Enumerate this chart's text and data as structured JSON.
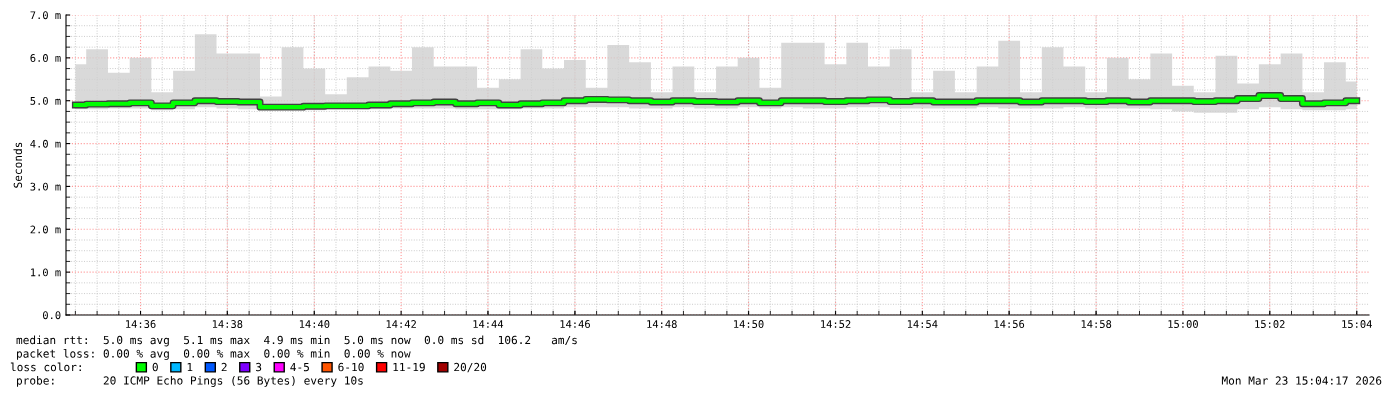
{
  "chart_data": {
    "type": "step",
    "ylabel": "Seconds",
    "x": [
      14.575,
      14.5833,
      14.5917,
      14.6,
      14.6083,
      14.6167,
      14.625,
      14.6333,
      14.6417,
      14.65,
      14.6583,
      14.6667,
      14.675,
      14.6833,
      14.6917,
      14.7,
      14.7083,
      14.7167,
      14.725,
      14.7333,
      14.7417,
      14.75,
      14.7583,
      14.7667,
      14.775,
      14.7833,
      14.7917,
      14.8,
      14.8083,
      14.8167,
      14.825,
      14.8333,
      14.8417,
      14.85,
      14.8583,
      14.8667,
      14.875,
      14.8833,
      14.8917,
      14.9,
      14.9083,
      14.9167,
      14.925,
      14.9333,
      14.9417,
      14.95,
      14.9583,
      14.9667,
      14.975,
      14.9833,
      14.9917,
      15.0,
      15.0083,
      15.0167,
      15.025,
      15.0333,
      15.0417,
      15.05,
      15.0583,
      15.0667
    ],
    "series": [
      {
        "name": "0",
        "color": "#00ff00",
        "values": [
          4.9,
          4.92,
          4.93,
          4.95,
          4.88,
          4.95,
          5.0,
          4.98,
          4.97,
          4.85,
          4.85,
          4.87,
          4.88,
          4.88,
          4.9,
          4.93,
          4.95,
          4.97,
          4.93,
          4.95,
          4.9,
          4.93,
          4.95,
          5.0,
          5.03,
          5.02,
          5.0,
          4.97,
          5.0,
          4.98,
          4.97,
          5.0,
          4.95,
          5.0,
          5.0,
          4.98,
          5.0,
          5.02,
          4.98,
          5.0,
          4.97,
          4.97,
          5.0,
          5.0,
          4.97,
          5.0,
          5.0,
          4.98,
          5.0,
          4.97,
          5.0,
          5.0,
          4.98,
          5.0,
          5.05,
          5.12,
          5.05,
          4.93,
          4.95,
          5.0
        ],
        "lower": [
          4.8,
          4.8,
          4.82,
          4.82,
          4.78,
          4.8,
          4.85,
          4.82,
          4.8,
          4.78,
          4.78,
          4.78,
          4.8,
          4.8,
          4.8,
          4.82,
          4.82,
          4.82,
          4.8,
          4.8,
          4.8,
          4.82,
          4.82,
          4.85,
          4.85,
          4.85,
          4.82,
          4.82,
          4.85,
          4.82,
          4.82,
          4.85,
          4.82,
          4.85,
          4.82,
          4.82,
          4.85,
          4.85,
          4.82,
          4.82,
          4.82,
          4.82,
          4.85,
          4.82,
          4.82,
          4.82,
          4.85,
          4.82,
          4.82,
          4.82,
          4.8,
          4.75,
          4.72,
          4.72,
          4.8,
          4.85,
          4.8,
          4.78,
          4.78,
          4.8
        ],
        "upper": [
          5.85,
          6.2,
          5.65,
          6.0,
          5.2,
          5.7,
          6.55,
          6.1,
          6.1,
          5.1,
          6.25,
          5.75,
          5.15,
          5.55,
          5.8,
          5.7,
          6.25,
          5.8,
          5.8,
          5.3,
          5.5,
          6.2,
          5.75,
          5.95,
          5.3,
          6.3,
          5.9,
          5.2,
          5.8,
          5.2,
          5.8,
          6.0,
          5.3,
          6.35,
          6.35,
          5.85,
          6.35,
          5.8,
          6.2,
          5.2,
          5.7,
          5.2,
          5.8,
          6.4,
          5.2,
          6.25,
          5.8,
          5.2,
          6.0,
          5.5,
          6.1,
          5.35,
          5.2,
          6.05,
          5.4,
          5.85,
          6.1,
          5.2,
          5.9,
          5.45
        ]
      },
      {
        "name": "1",
        "color": "#00b8ff",
        "values": [
          null,
          null,
          null,
          null,
          null,
          null,
          null,
          null,
          null,
          null,
          null,
          null,
          null,
          null,
          null,
          null,
          null,
          null,
          null,
          null,
          null,
          null,
          null,
          null,
          null,
          null,
          null,
          null,
          null,
          null,
          null,
          null,
          null,
          null,
          null,
          null,
          null,
          null,
          null,
          null,
          null,
          null,
          null,
          null,
          null,
          null,
          null,
          null,
          null,
          null,
          null,
          null,
          null,
          null,
          null,
          null,
          null,
          null,
          null,
          null
        ]
      },
      {
        "name": "2",
        "color": "#0059ff",
        "values": [
          null,
          null,
          null,
          null,
          null,
          null,
          null,
          null,
          null,
          null,
          null,
          null,
          null,
          null,
          null,
          null,
          null,
          null,
          null,
          null,
          null,
          null,
          null,
          null,
          null,
          null,
          null,
          null,
          null,
          null,
          null,
          null,
          null,
          null,
          null,
          null,
          null,
          null,
          null,
          null,
          null,
          null,
          null,
          null,
          null,
          null,
          null,
          null,
          null,
          null,
          null,
          null,
          null,
          null,
          null,
          null,
          null,
          null,
          null,
          null
        ]
      },
      {
        "name": "3",
        "color": "#7e00ff",
        "values": [
          null,
          null,
          null,
          null,
          null,
          null,
          null,
          null,
          null,
          null,
          null,
          null,
          null,
          null,
          null,
          null,
          null,
          null,
          null,
          null,
          null,
          null,
          null,
          null,
          null,
          null,
          null,
          null,
          null,
          null,
          null,
          null,
          null,
          null,
          null,
          null,
          null,
          null,
          null,
          null,
          null,
          null,
          null,
          null,
          null,
          null,
          null,
          null,
          null,
          null,
          null,
          null,
          null,
          null,
          null,
          null,
          null,
          null,
          null,
          null
        ]
      },
      {
        "name": "4-5",
        "color": "#ff00ff",
        "values": [
          null,
          null,
          null,
          null,
          null,
          null,
          null,
          null,
          null,
          null,
          null,
          null,
          null,
          null,
          null,
          null,
          null,
          null,
          null,
          null,
          null,
          null,
          null,
          null,
          null,
          null,
          null,
          null,
          null,
          null,
          null,
          null,
          null,
          null,
          null,
          null,
          null,
          null,
          null,
          null,
          null,
          null,
          null,
          null,
          null,
          null,
          null,
          null,
          null,
          null,
          null,
          null,
          null,
          null,
          null,
          null,
          null,
          null,
          null,
          null
        ]
      },
      {
        "name": "6-10",
        "color": "#ff5500",
        "values": [
          null,
          null,
          null,
          null,
          null,
          null,
          null,
          null,
          null,
          null,
          null,
          null,
          null,
          null,
          null,
          null,
          null,
          null,
          null,
          null,
          null,
          null,
          null,
          null,
          null,
          null,
          null,
          null,
          null,
          null,
          null,
          null,
          null,
          null,
          null,
          null,
          null,
          null,
          null,
          null,
          null,
          null,
          null,
          null,
          null,
          null,
          null,
          null,
          null,
          null,
          null,
          null,
          null,
          null,
          null,
          null,
          null,
          null,
          null,
          null
        ]
      },
      {
        "name": "11-19",
        "color": "#ff0000",
        "values": [
          null,
          null,
          null,
          null,
          null,
          null,
          null,
          null,
          null,
          null,
          null,
          null,
          null,
          null,
          null,
          null,
          null,
          null,
          null,
          null,
          null,
          null,
          null,
          null,
          null,
          null,
          null,
          null,
          null,
          null,
          null,
          null,
          null,
          null,
          null,
          null,
          null,
          null,
          null,
          null,
          null,
          null,
          null,
          null,
          null,
          null,
          null,
          null,
          null,
          null,
          null,
          null,
          null,
          null,
          null,
          null,
          null,
          null,
          null,
          null
        ]
      },
      {
        "name": "20/20",
        "color": "#a10000",
        "values": [
          null,
          null,
          null,
          null,
          null,
          null,
          null,
          null,
          null,
          null,
          null,
          null,
          null,
          null,
          null,
          null,
          null,
          null,
          null,
          null,
          null,
          null,
          null,
          null,
          null,
          null,
          null,
          null,
          null,
          null,
          null,
          null,
          null,
          null,
          null,
          null,
          null,
          null,
          null,
          null,
          null,
          null,
          null,
          null,
          null,
          null,
          null,
          null,
          null,
          null,
          null,
          null,
          null,
          null,
          null,
          null,
          null,
          null,
          null,
          null
        ]
      }
    ],
    "legend": "bottom left",
    "legend_title": "loss color:",
    "xlim": [
      14.5714,
      15.0714
    ],
    "xticks": [
      {
        "value": 14.6,
        "label": "14:36"
      },
      {
        "value": 14.6333,
        "label": "14:38"
      },
      {
        "value": 14.6667,
        "label": "14:40"
      },
      {
        "value": 14.7,
        "label": "14:42"
      },
      {
        "value": 14.7333,
        "label": "14:44"
      },
      {
        "value": 14.7667,
        "label": "14:46"
      },
      {
        "value": 14.8,
        "label": "14:48"
      },
      {
        "value": 14.8333,
        "label": "14:50"
      },
      {
        "value": 14.8667,
        "label": "14:52"
      },
      {
        "value": 14.9,
        "label": "14:54"
      },
      {
        "value": 14.9333,
        "label": "14:56"
      },
      {
        "value": 14.9667,
        "label": "14:58"
      },
      {
        "value": 15.0,
        "label": "15:00"
      },
      {
        "value": 15.0333,
        "label": "15:02"
      },
      {
        "value": 15.0667,
        "label": "15:04"
      }
    ],
    "ylim": [
      0,
      7
    ],
    "yticks": [
      {
        "value": 0,
        "label": "0.0"
      },
      {
        "value": 1,
        "label": "1.0 m"
      },
      {
        "value": 2,
        "label": "2.0 m"
      },
      {
        "value": 3,
        "label": "3.0 m"
      },
      {
        "value": 4,
        "label": "4.0 m"
      },
      {
        "value": 5,
        "label": "5.0 m"
      },
      {
        "value": 6,
        "label": "6.0 m"
      },
      {
        "value": 7,
        "label": "7.0 m"
      }
    ],
    "grid": true,
    "annotations": [
      "median rtt:  5.0 ms avg  5.1 ms max  4.9 ms min  5.0 ms now  0.0 ms sd  106.2   am/s",
      "packet loss: 0.00 % avg  0.00 % max  0.00 % min  0.00 % now",
      "probe:       20 ICMP Echo Pings (56 Bytes) every 10s",
      "Mon Mar 23 15:04:17 2026"
    ]
  }
}
